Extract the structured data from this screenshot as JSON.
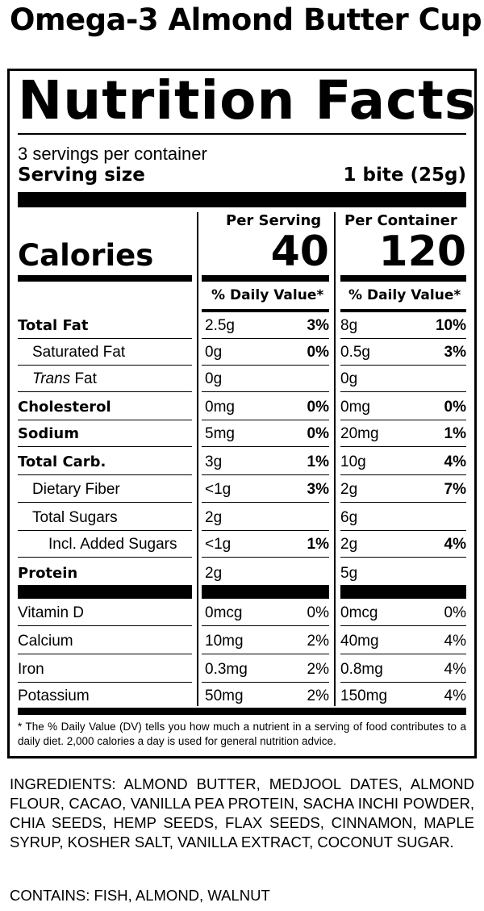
{
  "product": {
    "title": "Omega-3 Almond Butter Cup"
  },
  "label": {
    "heading": "Nutrition Facts",
    "servings_per_container": "3 servings per container",
    "serving_size_label": "Serving size",
    "serving_size_value": "1 bite (25g)",
    "per_serving_header": "Per Serving",
    "per_container_header": "Per Container",
    "calories_label": "Calories",
    "calories_per_serving": "40",
    "calories_per_container": "120",
    "dv_header": "% Daily Value*",
    "nutrients": [
      {
        "name": "Total Fat",
        "bold": true,
        "indent": 0,
        "serving_amount": "2.5g",
        "serving_dv": "3%",
        "container_amount": "8g",
        "container_dv": "10%"
      },
      {
        "name": "Saturated Fat",
        "bold": false,
        "indent": 1,
        "serving_amount": "0g",
        "serving_dv": "0%",
        "container_amount": "0.5g",
        "container_dv": "3%"
      },
      {
        "name_italic": "Trans",
        "name": " Fat",
        "bold": false,
        "indent": 1,
        "serving_amount": "0g",
        "serving_dv": "",
        "container_amount": "0g",
        "container_dv": ""
      },
      {
        "name": "Cholesterol",
        "bold": true,
        "indent": 0,
        "serving_amount": "0mg",
        "serving_dv": "0%",
        "container_amount": "0mg",
        "container_dv": "0%"
      },
      {
        "name": "Sodium",
        "bold": true,
        "indent": 0,
        "serving_amount": "5mg",
        "serving_dv": "0%",
        "container_amount": "20mg",
        "container_dv": "1%"
      },
      {
        "name": "Total Carb.",
        "bold": true,
        "indent": 0,
        "serving_amount": "3g",
        "serving_dv": "1%",
        "container_amount": "10g",
        "container_dv": "4%"
      },
      {
        "name": "Dietary Fiber",
        "bold": false,
        "indent": 1,
        "serving_amount": "<1g",
        "serving_dv": "3%",
        "container_amount": "2g",
        "container_dv": "7%"
      },
      {
        "name": "Total Sugars",
        "bold": false,
        "indent": 1,
        "serving_amount": "2g",
        "serving_dv": "",
        "container_amount": "6g",
        "container_dv": ""
      },
      {
        "name": "Incl. Added Sugars",
        "bold": false,
        "indent": 2,
        "serving_amount": "<1g",
        "serving_dv": "1%",
        "container_amount": "2g",
        "container_dv": "4%"
      },
      {
        "name": "Protein",
        "bold": true,
        "indent": 0,
        "serving_amount": "2g",
        "serving_dv": "",
        "container_amount": "5g",
        "container_dv": ""
      }
    ],
    "vitamins": [
      {
        "name": "Vitamin D",
        "serving_amount": "0mcg",
        "serving_dv": "0%",
        "container_amount": "0mcg",
        "container_dv": "0%"
      },
      {
        "name": "Calcium",
        "serving_amount": "10mg",
        "serving_dv": "2%",
        "container_amount": "40mg",
        "container_dv": "4%"
      },
      {
        "name": "Iron",
        "serving_amount": "0.3mg",
        "serving_dv": "2%",
        "container_amount": "0.8mg",
        "container_dv": "4%"
      },
      {
        "name": "Potassium",
        "serving_amount": "50mg",
        "serving_dv": "2%",
        "container_amount": "150mg",
        "container_dv": "4%"
      }
    ],
    "footnote": "* The % Daily Value (DV) tells you how much a nutrient in a serving of food contributes to a daily diet. 2,000 calories a day is used for general nutrition advice."
  },
  "ingredients": "INGREDIENTS: ALMOND BUTTER, MEDJOOL DATES, ALMOND FLOUR, CACAO, VANILLA PEA PROTEIN, SACHA INCHI POWDER, CHIA SEEDS, HEMP SEEDS, FLAX SEEDS, CINNAMON, MAPLE SYRUP, KOSHER SALT, VANILLA EXTRACT, COCONUT SUGAR.",
  "contains": "CONTAINS: FISH, ALMOND, WALNUT"
}
